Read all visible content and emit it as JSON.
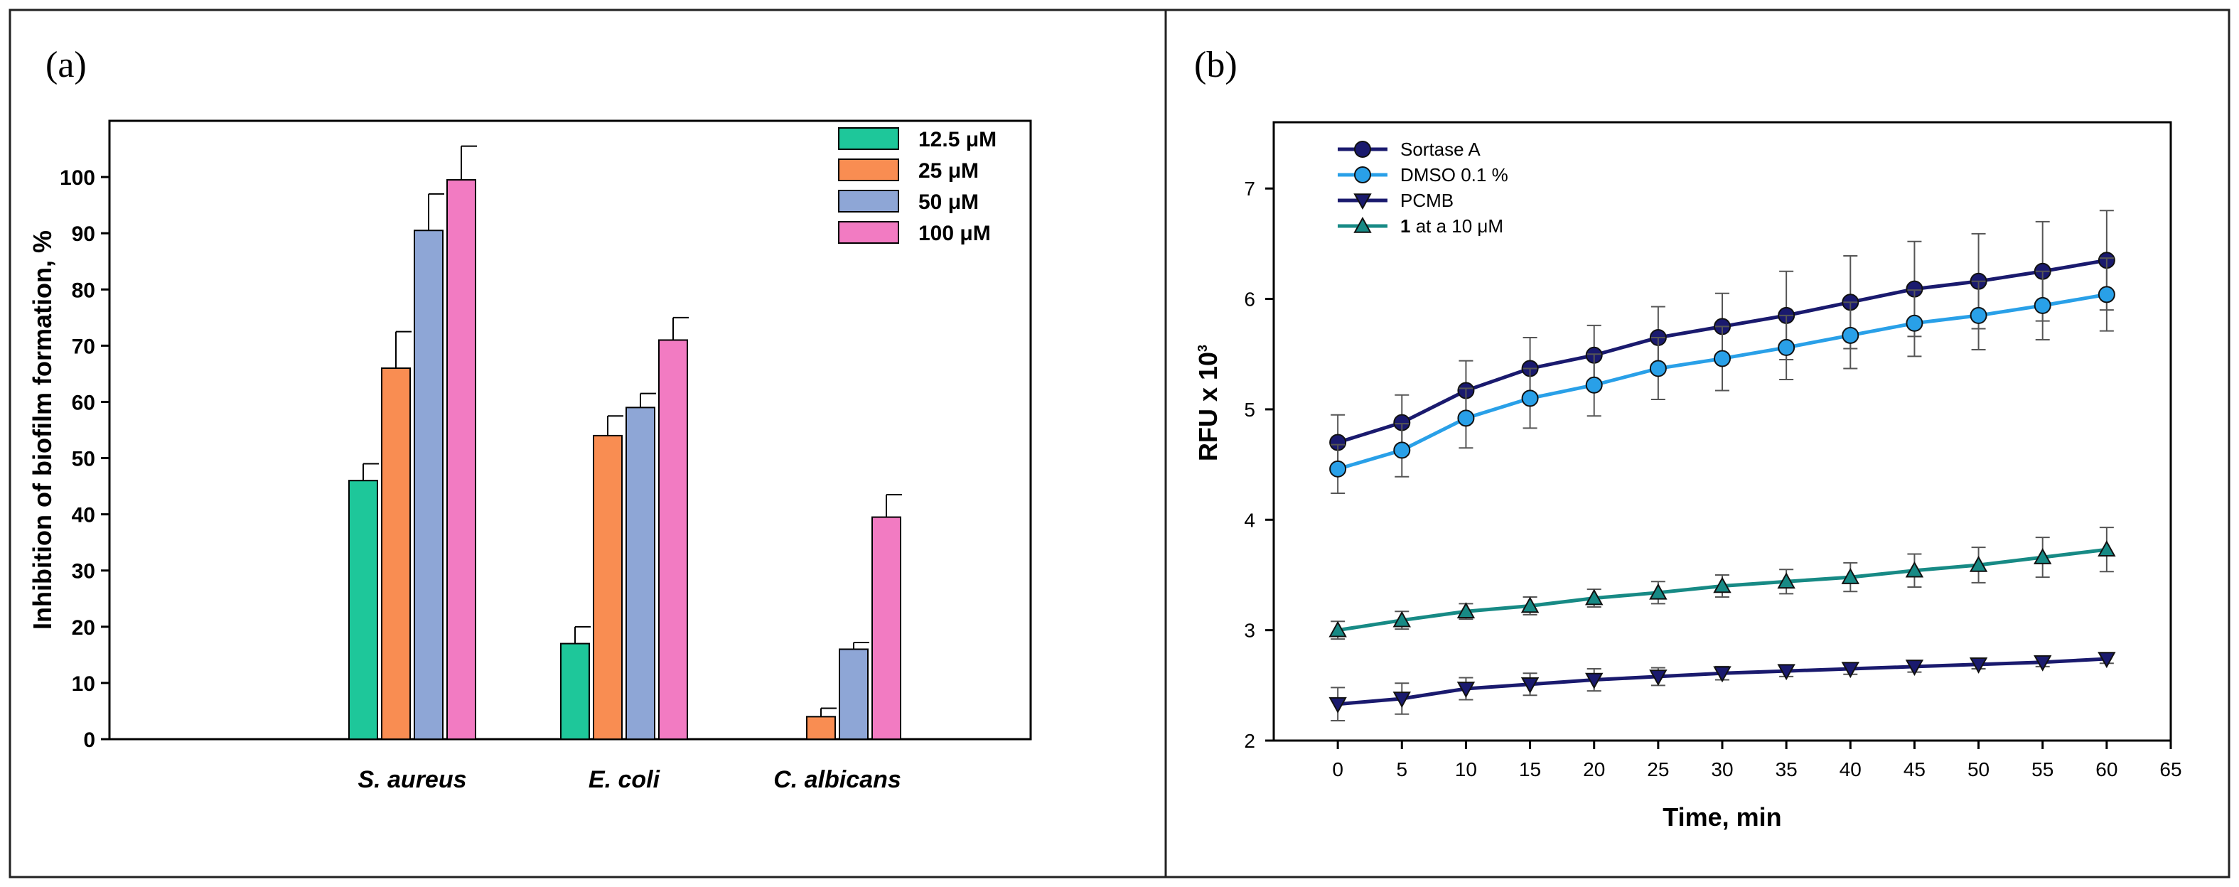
{
  "figure": {
    "panel_a_letter": "(a)",
    "panel_b_letter": "(b)"
  },
  "chart_data": [
    {
      "type": "bar",
      "panel": "(a)",
      "title": "",
      "xlabel": "",
      "ylabel": "Inhibition of biofilm formation, %",
      "ylim": [
        0,
        110
      ],
      "yticks": [
        "0",
        "10",
        "20",
        "30",
        "40",
        "50",
        "60",
        "70",
        "80",
        "90",
        "100"
      ],
      "ytick_values": [
        0,
        10,
        20,
        30,
        40,
        50,
        60,
        70,
        80,
        90,
        100
      ],
      "categories": [
        "S. aureus",
        "E. coli",
        "C. albicans"
      ],
      "legend_position": "top-right",
      "series": [
        {
          "name": "12.5 μM",
          "color": "#1ec79a",
          "values": [
            46,
            17,
            0
          ],
          "errors": [
            3,
            3,
            0
          ]
        },
        {
          "name": "25 μM",
          "color": "#f98d52",
          "values": [
            66,
            54,
            4
          ],
          "errors": [
            6.5,
            3.5,
            1.5
          ]
        },
        {
          "name": "50 μM",
          "color": "#8ea6d6",
          "values": [
            90.5,
            59,
            16
          ],
          "errors": [
            6.5,
            2.5,
            1.2
          ]
        },
        {
          "name": "100 μM",
          "color": "#f27bc2",
          "values": [
            99.5,
            71,
            39.5
          ],
          "errors": [
            6,
            4,
            4
          ]
        }
      ]
    },
    {
      "type": "line",
      "panel": "(b)",
      "title": "",
      "xlabel": "Time, min",
      "ylabel_main": "RFU x 10",
      "ylabel_sup": "3",
      "xlim": [
        -5,
        65
      ],
      "ylim": [
        2,
        7.6
      ],
      "xticks": [
        "0",
        "5",
        "10",
        "15",
        "20",
        "25",
        "30",
        "35",
        "40",
        "45",
        "50",
        "55",
        "60",
        "65"
      ],
      "xtick_values": [
        0,
        5,
        10,
        15,
        20,
        25,
        30,
        35,
        40,
        45,
        50,
        55,
        60,
        65
      ],
      "yticks": [
        "2",
        "3",
        "4",
        "5",
        "6",
        "7"
      ],
      "ytick_values": [
        2,
        3,
        4,
        5,
        6,
        7
      ],
      "legend_position": "top-left",
      "x": [
        0,
        5,
        10,
        15,
        20,
        25,
        30,
        35,
        40,
        45,
        50,
        55,
        60
      ],
      "series": [
        {
          "name": "Sortase A",
          "name_bold": "",
          "name_rest": "Sortase A",
          "marker": "circle",
          "color": "#1a1a6e",
          "values": [
            4.7,
            4.88,
            5.17,
            5.37,
            5.49,
            5.65,
            5.75,
            5.85,
            5.97,
            6.09,
            6.16,
            6.25,
            6.35
          ],
          "errors": [
            0.25,
            0.25,
            0.27,
            0.28,
            0.27,
            0.28,
            0.3,
            0.4,
            0.42,
            0.43,
            0.43,
            0.45,
            0.45
          ]
        },
        {
          "name": "DMSO 0.1 %",
          "name_bold": "",
          "name_rest": "DMSO 0.1 %",
          "marker": "circle",
          "color": "#29a0e8",
          "values": [
            4.46,
            4.63,
            4.92,
            5.1,
            5.22,
            5.37,
            5.46,
            5.56,
            5.67,
            5.78,
            5.85,
            5.94,
            6.04
          ],
          "errors": [
            0.22,
            0.24,
            0.27,
            0.27,
            0.28,
            0.28,
            0.29,
            0.29,
            0.3,
            0.3,
            0.31,
            0.31,
            0.33
          ]
        },
        {
          "name": "PCMB",
          "name_bold": "",
          "name_rest": "PCMB",
          "marker": "triangle-down",
          "color": "#1a1a6e",
          "values": [
            2.33,
            2.38,
            2.47,
            2.51,
            2.55,
            2.58,
            2.61,
            2.63,
            2.65,
            2.67,
            2.69,
            2.71,
            2.74
          ],
          "errors": [
            0.15,
            0.14,
            0.1,
            0.1,
            0.1,
            0.08,
            0.06,
            0.05,
            0.05,
            0.05,
            0.04,
            0.04,
            0.04
          ]
        },
        {
          "name": "1 at a 10 μM",
          "name_bold": "1",
          "name_rest": " at a 10 μM",
          "marker": "triangle-up",
          "color": "#178a85",
          "values": [
            3.0,
            3.09,
            3.17,
            3.22,
            3.29,
            3.34,
            3.4,
            3.44,
            3.48,
            3.54,
            3.59,
            3.66,
            3.73
          ],
          "errors": [
            0.08,
            0.08,
            0.07,
            0.08,
            0.08,
            0.1,
            0.1,
            0.11,
            0.13,
            0.15,
            0.16,
            0.18,
            0.2
          ]
        }
      ]
    }
  ]
}
